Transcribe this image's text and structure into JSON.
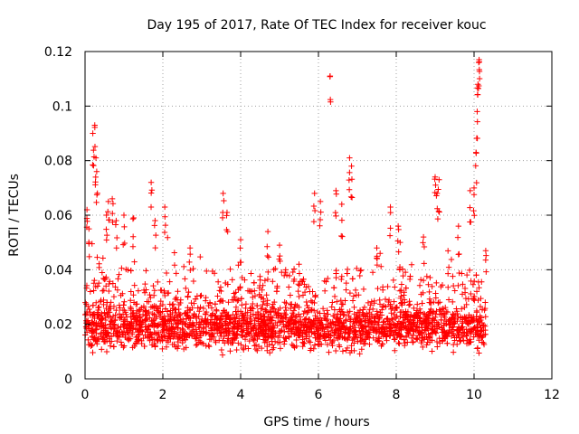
{
  "chart_data": {
    "type": "scatter",
    "title": "Day 195 of 2017, Rate Of TEC Index for receiver kouc",
    "xlabel": "GPS time / hours",
    "ylabel": "ROTI / TECUs",
    "xlim": [
      0,
      12
    ],
    "ylim": [
      0,
      0.12
    ],
    "xticks": [
      0,
      2,
      4,
      6,
      8,
      10,
      12
    ],
    "yticks": [
      0,
      0.02,
      0.04,
      0.06,
      0.08,
      0.1,
      0.12
    ],
    "xtick_labels": [
      "0",
      "2",
      "4",
      "6",
      "8",
      "10",
      "12"
    ],
    "ytick_labels": [
      "0",
      "0.02",
      "0.04",
      "0.06",
      "0.08",
      "0.1",
      "0.12"
    ],
    "grid": true,
    "marker": "+",
    "color": "#ff0000",
    "x_data_range": [
      0,
      10.3
    ],
    "series": [
      {
        "name": "ROTI",
        "peaks": [
          [
            0.05,
            0.062
          ],
          [
            0.1,
            0.055
          ],
          [
            0.2,
            0.09
          ],
          [
            0.25,
            0.093
          ],
          [
            0.28,
            0.081
          ],
          [
            0.3,
            0.076
          ],
          [
            0.55,
            0.06
          ],
          [
            0.6,
            0.065
          ],
          [
            0.7,
            0.066
          ],
          [
            0.8,
            0.058
          ],
          [
            1.0,
            0.06
          ],
          [
            1.25,
            0.059
          ],
          [
            1.7,
            0.072
          ],
          [
            1.8,
            0.058
          ],
          [
            2.05,
            0.063
          ],
          [
            2.7,
            0.048
          ],
          [
            3.55,
            0.068
          ],
          [
            3.65,
            0.061
          ],
          [
            4.0,
            0.051
          ],
          [
            4.7,
            0.054
          ],
          [
            5.0,
            0.049
          ],
          [
            5.5,
            0.042
          ],
          [
            5.9,
            0.068
          ],
          [
            6.05,
            0.065
          ],
          [
            6.3,
            0.111
          ],
          [
            6.45,
            0.069
          ],
          [
            6.6,
            0.064
          ],
          [
            6.8,
            0.081
          ],
          [
            6.85,
            0.078
          ],
          [
            7.5,
            0.048
          ],
          [
            7.85,
            0.063
          ],
          [
            8.05,
            0.056
          ],
          [
            8.1,
            0.05
          ],
          [
            8.7,
            0.052
          ],
          [
            9.0,
            0.074
          ],
          [
            9.05,
            0.068
          ],
          [
            9.1,
            0.073
          ],
          [
            9.6,
            0.056
          ],
          [
            9.9,
            0.069
          ],
          [
            10.0,
            0.07
          ],
          [
            10.05,
            0.083
          ],
          [
            10.08,
            0.098
          ],
          [
            10.1,
            0.108
          ],
          [
            10.12,
            0.116
          ],
          [
            10.13,
            0.117
          ],
          [
            10.3,
            0.047
          ]
        ]
      }
    ]
  }
}
